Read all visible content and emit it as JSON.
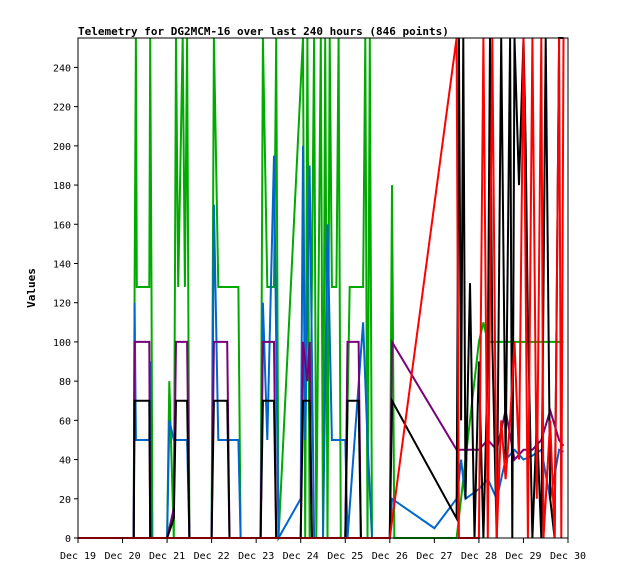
{
  "chart_data": {
    "type": "line",
    "title": "Telemetry for DG2MCM-16 over last 240 hours (846 points)",
    "xlabel": "",
    "ylabel": "Values",
    "x_unit": "days since Dec 19 00:00",
    "xlim": [
      0,
      11
    ],
    "ylim": [
      0,
      255
    ],
    "x_ticks": [
      {
        "label": "Dec 19",
        "x": 0
      },
      {
        "label": "Dec 20",
        "x": 1
      },
      {
        "label": "Dec 21",
        "x": 2
      },
      {
        "label": "Dec 22",
        "x": 3
      },
      {
        "label": "Dec 23",
        "x": 4
      },
      {
        "label": "Dec 24",
        "x": 5
      },
      {
        "label": "Dec 25",
        "x": 6
      },
      {
        "label": "Dec 26",
        "x": 7
      },
      {
        "label": "Dec 27",
        "x": 8
      },
      {
        "label": "Dec 28",
        "x": 9
      },
      {
        "label": "Dec 29",
        "x": 10
      },
      {
        "label": "Dec 30",
        "x": 11
      }
    ],
    "y_ticks": [
      0,
      20,
      40,
      60,
      80,
      100,
      120,
      140,
      160,
      180,
      200,
      220,
      240
    ],
    "grid": false,
    "series": [
      {
        "name": "green",
        "color": "#00aa00",
        "points": [
          [
            1.25,
            0
          ],
          [
            1.27,
            128
          ],
          [
            1.3,
            255
          ],
          [
            1.32,
            128
          ],
          [
            1.6,
            128
          ],
          [
            1.62,
            255
          ],
          [
            1.65,
            128
          ],
          [
            1.67,
            0
          ],
          [
            2.0,
            0
          ],
          [
            2.05,
            80
          ],
          [
            2.15,
            0
          ],
          [
            2.2,
            255
          ],
          [
            2.25,
            128
          ],
          [
            2.35,
            255
          ],
          [
            2.4,
            128
          ],
          [
            2.45,
            255
          ],
          [
            2.5,
            0
          ],
          [
            3.0,
            0
          ],
          [
            3.05,
            255
          ],
          [
            3.15,
            128
          ],
          [
            3.6,
            128
          ],
          [
            3.65,
            0
          ],
          [
            4.1,
            0
          ],
          [
            4.15,
            255
          ],
          [
            4.25,
            128
          ],
          [
            4.4,
            128
          ],
          [
            4.45,
            255
          ],
          [
            4.5,
            0
          ],
          [
            5.05,
            255
          ],
          [
            5.1,
            0
          ],
          [
            5.15,
            255
          ],
          [
            5.2,
            0
          ],
          [
            5.3,
            255
          ],
          [
            5.35,
            0
          ],
          [
            5.45,
            255
          ],
          [
            5.5,
            0
          ],
          [
            5.55,
            255
          ],
          [
            5.6,
            0
          ],
          [
            5.65,
            255
          ],
          [
            5.7,
            128
          ],
          [
            5.8,
            128
          ],
          [
            5.85,
            255
          ],
          [
            5.9,
            0
          ],
          [
            6.0,
            0
          ],
          [
            6.1,
            128
          ],
          [
            6.4,
            128
          ],
          [
            6.45,
            255
          ],
          [
            6.5,
            0
          ],
          [
            6.55,
            255
          ],
          [
            6.6,
            0
          ],
          [
            7.0,
            0
          ],
          [
            7.05,
            180
          ],
          [
            7.1,
            0
          ],
          [
            8.5,
            0
          ],
          [
            9.0,
            100
          ],
          [
            9.1,
            110
          ],
          [
            9.2,
            100
          ],
          [
            10.9,
            100
          ]
        ]
      },
      {
        "name": "blue",
        "color": "#0066cc",
        "points": [
          [
            1.25,
            0
          ],
          [
            1.27,
            120
          ],
          [
            1.3,
            50
          ],
          [
            1.6,
            50
          ],
          [
            1.62,
            90
          ],
          [
            1.65,
            0
          ],
          [
            2.0,
            0
          ],
          [
            2.05,
            60
          ],
          [
            2.15,
            50
          ],
          [
            2.45,
            50
          ],
          [
            2.5,
            0
          ],
          [
            3.0,
            0
          ],
          [
            3.05,
            170
          ],
          [
            3.15,
            50
          ],
          [
            3.6,
            50
          ],
          [
            3.65,
            0
          ],
          [
            4.1,
            0
          ],
          [
            4.15,
            120
          ],
          [
            4.25,
            50
          ],
          [
            4.4,
            195
          ],
          [
            4.5,
            0
          ],
          [
            5.0,
            20
          ],
          [
            5.05,
            200
          ],
          [
            5.1,
            50
          ],
          [
            5.2,
            190
          ],
          [
            5.3,
            0
          ],
          [
            5.5,
            0
          ],
          [
            5.6,
            160
          ],
          [
            5.7,
            50
          ],
          [
            6.0,
            50
          ],
          [
            6.05,
            0
          ],
          [
            6.4,
            110
          ],
          [
            6.5,
            50
          ],
          [
            6.6,
            0
          ],
          [
            7.0,
            0
          ],
          [
            7.05,
            20
          ],
          [
            8.0,
            5
          ],
          [
            8.5,
            20
          ],
          [
            8.6,
            40
          ],
          [
            8.7,
            20
          ],
          [
            9.0,
            25
          ],
          [
            9.2,
            30
          ],
          [
            9.4,
            20
          ],
          [
            9.6,
            40
          ],
          [
            9.8,
            45
          ],
          [
            10.0,
            40
          ],
          [
            10.2,
            42
          ],
          [
            10.4,
            45
          ],
          [
            10.6,
            20
          ],
          [
            10.8,
            45
          ],
          [
            10.9,
            44
          ]
        ]
      },
      {
        "name": "purple",
        "color": "#7a007a",
        "points": [
          [
            1.25,
            0
          ],
          [
            1.27,
            100
          ],
          [
            1.6,
            100
          ],
          [
            1.62,
            0
          ],
          [
            2.0,
            0
          ],
          [
            2.15,
            15
          ],
          [
            2.2,
            100
          ],
          [
            2.45,
            100
          ],
          [
            2.5,
            0
          ],
          [
            3.0,
            0
          ],
          [
            3.05,
            100
          ],
          [
            3.35,
            100
          ],
          [
            3.4,
            0
          ],
          [
            4.1,
            0
          ],
          [
            4.15,
            100
          ],
          [
            4.4,
            100
          ],
          [
            4.45,
            0
          ],
          [
            5.0,
            0
          ],
          [
            5.05,
            100
          ],
          [
            5.15,
            80
          ],
          [
            5.2,
            100
          ],
          [
            5.25,
            0
          ],
          [
            6.0,
            0
          ],
          [
            6.05,
            100
          ],
          [
            6.3,
            100
          ],
          [
            6.35,
            0
          ],
          [
            7.0,
            0
          ],
          [
            7.05,
            100
          ],
          [
            8.5,
            45
          ],
          [
            9.0,
            45
          ],
          [
            9.2,
            50
          ],
          [
            9.4,
            45
          ],
          [
            9.6,
            65
          ],
          [
            9.8,
            40
          ],
          [
            10.0,
            45
          ],
          [
            10.2,
            45
          ],
          [
            10.4,
            50
          ],
          [
            10.6,
            65
          ],
          [
            10.8,
            50
          ],
          [
            10.9,
            47
          ]
        ]
      },
      {
        "name": "black",
        "color": "#000000",
        "points": [
          [
            1.0,
            0
          ],
          [
            1.25,
            0
          ],
          [
            1.27,
            70
          ],
          [
            1.6,
            70
          ],
          [
            1.62,
            0
          ],
          [
            2.0,
            0
          ],
          [
            2.15,
            10
          ],
          [
            2.2,
            70
          ],
          [
            2.45,
            70
          ],
          [
            2.5,
            0
          ],
          [
            3.0,
            0
          ],
          [
            3.05,
            70
          ],
          [
            3.35,
            70
          ],
          [
            3.4,
            0
          ],
          [
            4.1,
            0
          ],
          [
            4.15,
            70
          ],
          [
            4.4,
            70
          ],
          [
            4.45,
            0
          ],
          [
            5.0,
            0
          ],
          [
            5.05,
            70
          ],
          [
            5.2,
            70
          ],
          [
            5.25,
            0
          ],
          [
            6.0,
            0
          ],
          [
            6.05,
            70
          ],
          [
            6.3,
            70
          ],
          [
            6.35,
            0
          ],
          [
            7.0,
            0
          ],
          [
            7.05,
            70
          ],
          [
            8.5,
            10
          ],
          [
            8.55,
            255
          ],
          [
            8.6,
            60
          ],
          [
            8.65,
            255
          ],
          [
            8.7,
            20
          ],
          [
            8.8,
            130
          ],
          [
            8.9,
            0
          ],
          [
            9.0,
            90
          ],
          [
            9.1,
            0
          ],
          [
            9.2,
            90
          ],
          [
            9.25,
            255
          ],
          [
            9.3,
            100
          ],
          [
            9.4,
            0
          ],
          [
            9.5,
            255
          ],
          [
            9.6,
            40
          ],
          [
            9.7,
            255
          ],
          [
            9.75,
            0
          ],
          [
            9.8,
            255
          ],
          [
            9.9,
            180
          ],
          [
            10.0,
            255
          ],
          [
            10.05,
            200
          ],
          [
            10.1,
            110
          ],
          [
            10.2,
            0
          ],
          [
            10.3,
            60
          ],
          [
            10.4,
            0
          ],
          [
            10.5,
            255
          ],
          [
            10.6,
            20
          ],
          [
            10.7,
            0
          ],
          [
            10.8,
            255
          ],
          [
            10.9,
            255
          ]
        ]
      },
      {
        "name": "red",
        "color": "#ff0000",
        "points": [
          [
            0.0,
            0
          ],
          [
            7.0,
            0
          ],
          [
            8.5,
            255
          ],
          [
            8.55,
            0
          ],
          [
            9.0,
            0
          ],
          [
            9.1,
            255
          ],
          [
            9.2,
            0
          ],
          [
            9.3,
            255
          ],
          [
            9.4,
            0
          ],
          [
            9.5,
            60
          ],
          [
            9.6,
            30
          ],
          [
            9.7,
            60
          ],
          [
            9.8,
            100
          ],
          [
            9.9,
            40
          ],
          [
            10.0,
            255
          ],
          [
            10.1,
            0
          ],
          [
            10.2,
            255
          ],
          [
            10.3,
            20
          ],
          [
            10.4,
            255
          ],
          [
            10.45,
            0
          ],
          [
            10.55,
            40
          ],
          [
            10.6,
            60
          ],
          [
            10.7,
            0
          ],
          [
            10.8,
            255
          ],
          [
            10.85,
            0
          ],
          [
            10.9,
            255
          ]
        ]
      }
    ]
  }
}
